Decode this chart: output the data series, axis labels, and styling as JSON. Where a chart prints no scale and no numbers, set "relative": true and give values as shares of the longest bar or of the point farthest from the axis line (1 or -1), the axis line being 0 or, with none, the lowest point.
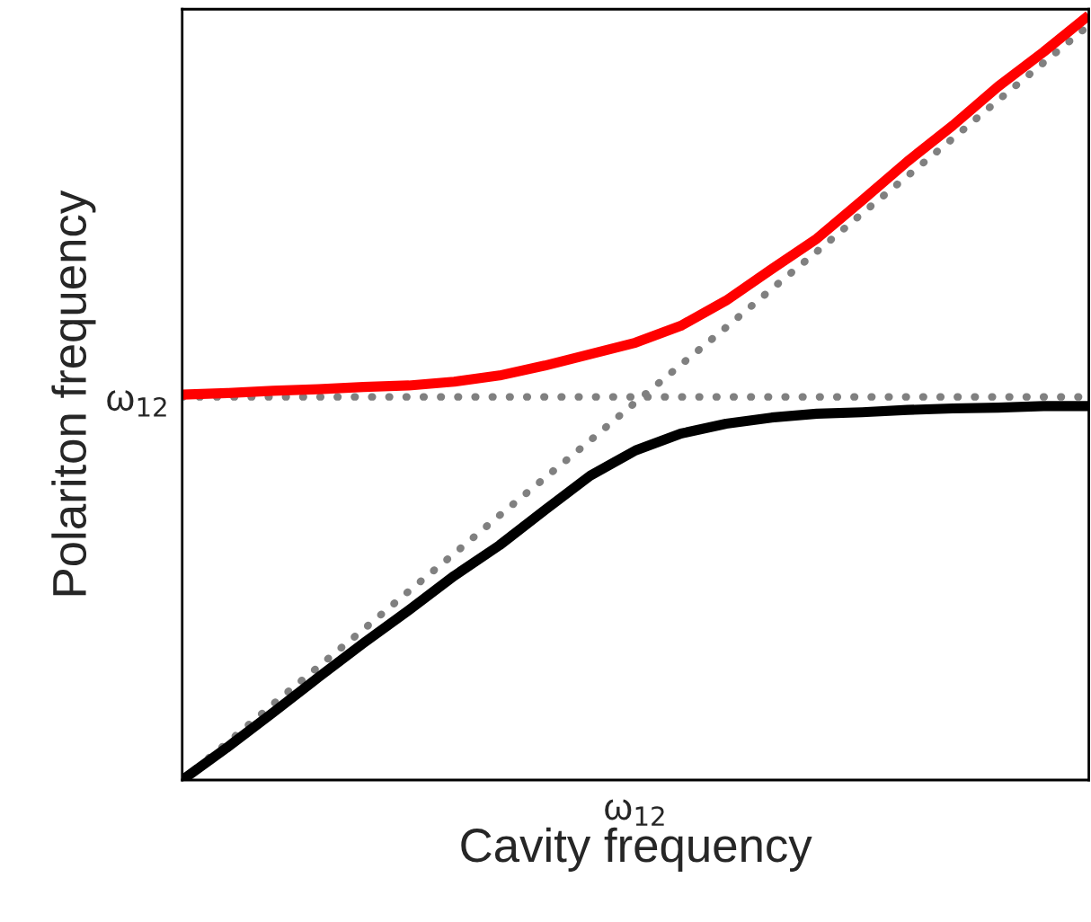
{
  "chart_data": {
    "type": "line",
    "relative": true,
    "xlabel": "Cavity frequency",
    "ylabel": "Polariton frequency",
    "categories": [
      null,
      null,
      null,
      null,
      null,
      null,
      null,
      null,
      null,
      null,
      null,
      null,
      null,
      null,
      null,
      null,
      null,
      null,
      null,
      null,
      null
    ],
    "annotations": [
      "ω$_{12}$",
      "ω$_{12}$"
    ],
    "grid": false,
    "legend": false,
    "marker": "none",
    "series": [
      {
        "color": "#808080",
        "line_style": "dotted",
        "values": [
          0.501,
          0.501,
          0.501,
          0.501,
          0.501,
          0.501,
          0.501,
          0.501,
          0.501,
          0.501,
          0.501,
          0.501,
          0.501,
          0.501,
          0.501,
          0.501,
          0.501,
          0.501,
          0.501,
          0.501,
          0.501
        ]
      },
      {
        "color": "#808080",
        "line_style": "dotted",
        "values": [
          0,
          0.049,
          0.099,
          0.148,
          0.197,
          0.247,
          0.296,
          0.346,
          0.395,
          0.444,
          0.494,
          0.543,
          0.592,
          0.642,
          0.691,
          0.741,
          0.79,
          0.839,
          0.889,
          0.938,
          0.987
        ]
      },
      {
        "color": "#ff0000",
        "line_style": "solid",
        "values": [
          0.504,
          0.506,
          0.509,
          0.511,
          0.514,
          0.516,
          0.521,
          0.529,
          0.542,
          0.557,
          0.572,
          0.594,
          0.627,
          0.668,
          0.708,
          0.758,
          0.809,
          0.856,
          0.907,
          0.952,
          1
        ]
      },
      {
        "color": "#000000",
        "line_style": "solid",
        "values": [
          0,
          0.043,
          0.088,
          0.134,
          0.179,
          0.222,
          0.267,
          0.307,
          0.353,
          0.398,
          0.431,
          0.453,
          0.466,
          0.474,
          0.479,
          0.481,
          0.484,
          0.486,
          0.487,
          0.489,
          0.489
        ]
      }
    ]
  }
}
